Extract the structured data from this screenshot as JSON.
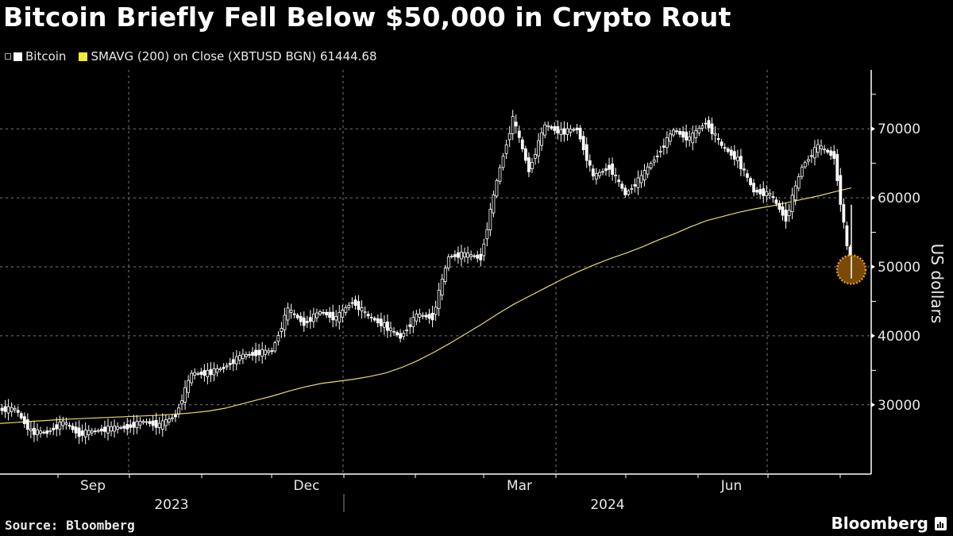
{
  "title": "Bitcoin Briefly Fell Below $50,000 in Crypto Rout",
  "legend": {
    "items": [
      {
        "label": "Bitcoin",
        "color": "#ffffff"
      },
      {
        "label": "SMAVG (200)  on Close (XBTUSD BGN) 61444.68",
        "color": "#f2e93c"
      }
    ]
  },
  "source": "Source: Bloomberg",
  "brand": "Bloomberg",
  "colors": {
    "background": "#000000",
    "price": "#ffffff",
    "sma": "#e6dc6a",
    "grid": "#7a7a7a",
    "highlight": "#c9781a"
  },
  "chart_data": {
    "type": "line",
    "title": "Bitcoin Briefly Fell Below $50,000 in Crypto Rout",
    "xlabel": "",
    "ylabel": "US dollars",
    "ylim": [
      22000,
      78000
    ],
    "yticks": [
      30000,
      40000,
      50000,
      60000,
      70000
    ],
    "xticks": [
      "Sep",
      "Dec",
      "Mar",
      "Jun"
    ],
    "year_labels": [
      "2023",
      "2024"
    ],
    "grid": true,
    "legend_position": "top-left",
    "x": [
      "2023-08-01",
      "2023-08-08",
      "2023-08-15",
      "2023-08-22",
      "2023-08-29",
      "2023-09-05",
      "2023-09-12",
      "2023-09-19",
      "2023-09-26",
      "2023-10-03",
      "2023-10-10",
      "2023-10-17",
      "2023-10-24",
      "2023-10-31",
      "2023-11-07",
      "2023-11-14",
      "2023-11-21",
      "2023-11-28",
      "2023-12-05",
      "2023-12-12",
      "2023-12-19",
      "2023-12-26",
      "2024-01-02",
      "2024-01-09",
      "2024-01-16",
      "2024-01-23",
      "2024-01-30",
      "2024-02-06",
      "2024-02-13",
      "2024-02-20",
      "2024-02-27",
      "2024-03-05",
      "2024-03-12",
      "2024-03-19",
      "2024-03-26",
      "2024-04-02",
      "2024-04-09",
      "2024-04-16",
      "2024-04-23",
      "2024-04-30",
      "2024-05-07",
      "2024-05-14",
      "2024-05-21",
      "2024-05-28",
      "2024-06-04",
      "2024-06-11",
      "2024-06-18",
      "2024-06-25",
      "2024-07-02",
      "2024-07-09",
      "2024-07-16",
      "2024-07-23",
      "2024-07-30",
      "2024-08-05"
    ],
    "series": [
      {
        "name": "Bitcoin",
        "values": [
          29300,
          29400,
          26100,
          26000,
          27500,
          25800,
          26200,
          26600,
          26800,
          27600,
          27000,
          28500,
          34500,
          34600,
          35400,
          37000,
          37500,
          37800,
          43800,
          41800,
          43500,
          42500,
          45000,
          42800,
          41500,
          39800,
          43000,
          42700,
          51500,
          51800,
          51300,
          62500,
          71500,
          64000,
          70500,
          69500,
          70000,
          63000,
          64500,
          60500,
          63000,
          66300,
          69800,
          68500,
          71000,
          67500,
          65500,
          61000,
          60500,
          57000,
          64500,
          67500,
          66000,
          49600
        ]
      },
      {
        "name": "SMAVG (200)",
        "values": [
          27300,
          27450,
          27600,
          27750,
          27900,
          28000,
          28100,
          28200,
          28300,
          28400,
          28500,
          28650,
          28850,
          29100,
          29500,
          30100,
          30700,
          31300,
          32000,
          32600,
          33100,
          33400,
          33700,
          34100,
          34600,
          35400,
          36400,
          37600,
          38900,
          40300,
          41700,
          43200,
          44600,
          45800,
          47000,
          48200,
          49300,
          50300,
          51200,
          52000,
          52900,
          53900,
          54800,
          55800,
          56700,
          57300,
          57900,
          58400,
          58800,
          59300,
          59800,
          60300,
          60900,
          61445
        ]
      }
    ],
    "annotations": [
      {
        "type": "circle",
        "x": "2024-08-05",
        "y": 49600,
        "color": "#c9781a"
      }
    ]
  }
}
